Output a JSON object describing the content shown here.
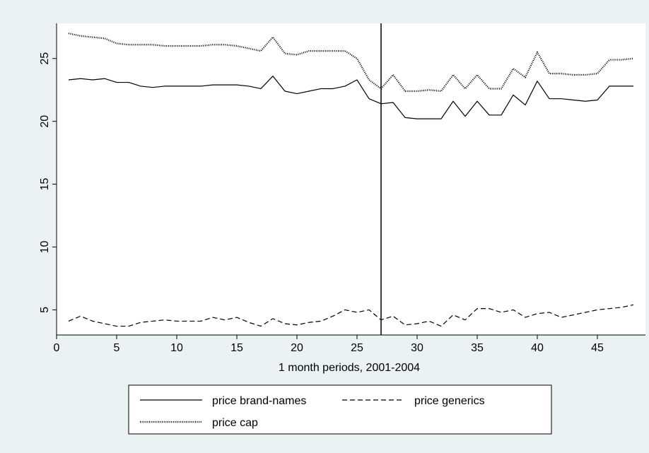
{
  "chart_data": {
    "type": "line",
    "title": "",
    "xlabel": "1 month periods, 2001-2004",
    "ylabel": "",
    "xlim": [
      0,
      49
    ],
    "ylim": [
      3,
      27.8
    ],
    "x_ticks": [
      0,
      5,
      10,
      15,
      20,
      25,
      30,
      35,
      40,
      45
    ],
    "y_ticks": [
      5,
      10,
      15,
      20,
      25
    ],
    "grid": false,
    "vline": 27,
    "legend_position": "bottom",
    "x": [
      1,
      2,
      3,
      4,
      5,
      6,
      7,
      8,
      9,
      10,
      11,
      12,
      13,
      14,
      15,
      16,
      17,
      18,
      19,
      20,
      21,
      22,
      23,
      24,
      25,
      26,
      27,
      28,
      29,
      30,
      31,
      32,
      33,
      34,
      35,
      36,
      37,
      38,
      39,
      40,
      41,
      42,
      43,
      44,
      45,
      46,
      47,
      48
    ],
    "series": [
      {
        "name": "price brand-names",
        "dash": "solid",
        "values": [
          23.3,
          23.4,
          23.3,
          23.4,
          23.1,
          23.1,
          22.8,
          22.7,
          22.8,
          22.8,
          22.8,
          22.8,
          22.9,
          22.9,
          22.9,
          22.8,
          22.6,
          23.6,
          22.4,
          22.2,
          22.4,
          22.6,
          22.6,
          22.8,
          23.3,
          21.8,
          21.4,
          21.5,
          20.3,
          20.2,
          20.2,
          20.2,
          21.6,
          20.4,
          21.6,
          20.5,
          20.5,
          22.1,
          21.3,
          23.2,
          21.8,
          21.8,
          21.7,
          21.6,
          21.7,
          22.8,
          22.8,
          22.8
        ]
      },
      {
        "name": "price generics",
        "dash": "dashed",
        "values": [
          4.1,
          4.5,
          4.1,
          3.9,
          3.7,
          3.7,
          4.0,
          4.1,
          4.2,
          4.1,
          4.1,
          4.1,
          4.4,
          4.2,
          4.4,
          4.0,
          3.7,
          4.3,
          3.9,
          3.8,
          4.0,
          4.1,
          4.5,
          5.0,
          4.8,
          5.0,
          4.2,
          4.5,
          3.8,
          3.9,
          4.1,
          3.7,
          4.6,
          4.2,
          5.1,
          5.1,
          4.8,
          5.0,
          4.4,
          4.7,
          4.8,
          4.4,
          4.6,
          4.8,
          5.0,
          5.1,
          5.2,
          5.4
        ]
      },
      {
        "name": "price cap",
        "dash": "dotted",
        "values": [
          27.0,
          26.8,
          26.7,
          26.6,
          26.2,
          26.1,
          26.1,
          26.1,
          26.0,
          26.0,
          26.0,
          26.0,
          26.1,
          26.1,
          26.0,
          25.8,
          25.6,
          26.7,
          25.4,
          25.3,
          25.6,
          25.6,
          25.6,
          25.6,
          25.0,
          23.3,
          22.6,
          23.7,
          22.4,
          22.4,
          22.5,
          22.4,
          23.7,
          22.6,
          23.7,
          22.6,
          22.6,
          24.2,
          23.5,
          25.5,
          23.8,
          23.8,
          23.7,
          23.7,
          23.8,
          24.9,
          24.9,
          25.0
        ]
      }
    ]
  }
}
